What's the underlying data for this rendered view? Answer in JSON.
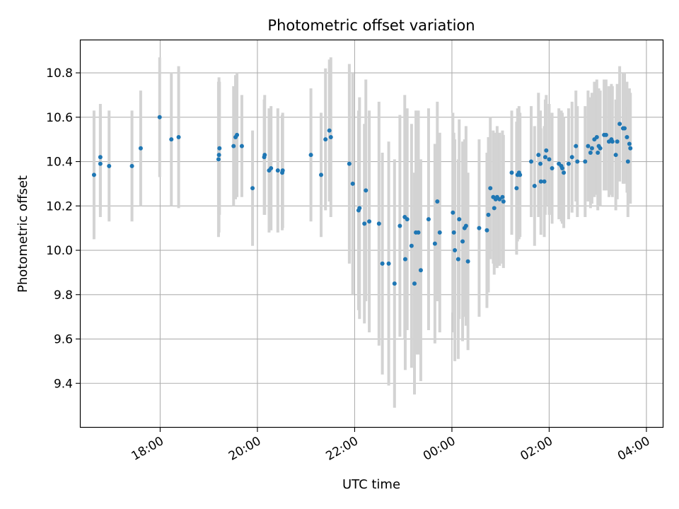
{
  "chart_data": {
    "type": "scatter",
    "title": "Photometric offset variation",
    "xlabel": "UTC time",
    "ylabel": "Photometric offset",
    "x_axis_kind": "time",
    "x_start_label": "16:40",
    "xlim_hours": [
      16.35,
      28.35
    ],
    "x_ticks": [
      {
        "hour": 18,
        "label": "18:00"
      },
      {
        "hour": 20,
        "label": "20:00"
      },
      {
        "hour": 22,
        "label": "22:00"
      },
      {
        "hour": 24,
        "label": "00:00"
      },
      {
        "hour": 26,
        "label": "02:00"
      },
      {
        "hour": 28,
        "label": "04:00"
      }
    ],
    "ylim": [
      9.2,
      10.95
    ],
    "y_ticks": [
      {
        "value": 9.4,
        "label": "9.4"
      },
      {
        "value": 9.6,
        "label": "9.6"
      },
      {
        "value": 9.8,
        "label": "9.8"
      },
      {
        "value": 10.0,
        "label": "10.0"
      },
      {
        "value": 10.2,
        "label": "10.2"
      },
      {
        "value": 10.4,
        "label": "10.4"
      },
      {
        "value": 10.6,
        "label": "10.6"
      },
      {
        "value": 10.8,
        "label": "10.8"
      }
    ],
    "grid": true,
    "marker_color": "#1f77b4",
    "errorbar_color": "#d3d3d3",
    "series": [
      {
        "x_hours": [
          16.64,
          16.77,
          16.77,
          16.95,
          17.42,
          17.6,
          17.99,
          18.23,
          18.38,
          19.2,
          19.21,
          19.22,
          19.51,
          19.55,
          19.58,
          19.68,
          19.9,
          20.14,
          20.15,
          20.24,
          20.28,
          20.42,
          20.51,
          20.52,
          21.1,
          21.31,
          21.4,
          21.48,
          21.51,
          21.89,
          21.96,
          22.08,
          22.1,
          22.2,
          22.23,
          22.3,
          22.5,
          22.57,
          22.7,
          22.82,
          22.93,
          23.03,
          23.04,
          23.08,
          23.17,
          23.23,
          23.26,
          23.31,
          23.36,
          23.52,
          23.65,
          23.7,
          23.75,
          24.02,
          24.04,
          24.06,
          24.13,
          24.15,
          24.22,
          24.26,
          24.29,
          24.33,
          24.56,
          24.72,
          24.75,
          24.79,
          24.85,
          24.87,
          24.9,
          24.93,
          24.98,
          25.04,
          25.06,
          25.23,
          25.33,
          25.35,
          25.38,
          25.4,
          25.63,
          25.7,
          25.78,
          25.82,
          25.83,
          25.9,
          25.92,
          25.94,
          26.0,
          26.06,
          26.2,
          26.25,
          26.27,
          26.3,
          26.4,
          26.47,
          26.55,
          26.58,
          26.74,
          26.8,
          26.85,
          26.88,
          26.93,
          26.98,
          27.0,
          27.02,
          27.05,
          27.13,
          27.17,
          27.23,
          27.28,
          27.3,
          27.37,
          27.4,
          27.45,
          27.52,
          27.55,
          27.6,
          27.62,
          27.65,
          27.67
        ],
        "y": [
          10.34,
          10.39,
          10.42,
          10.38,
          10.38,
          10.46,
          10.6,
          10.5,
          10.51,
          10.41,
          10.43,
          10.46,
          10.47,
          10.51,
          10.52,
          10.47,
          10.28,
          10.42,
          10.43,
          10.36,
          10.37,
          10.36,
          10.35,
          10.36,
          10.43,
          10.34,
          10.5,
          10.54,
          10.51,
          10.39,
          10.3,
          10.18,
          10.19,
          10.12,
          10.27,
          10.13,
          10.12,
          9.94,
          9.94,
          9.85,
          10.11,
          10.15,
          9.96,
          10.14,
          10.02,
          9.85,
          10.08,
          10.08,
          9.91,
          10.14,
          10.03,
          10.22,
          10.08,
          10.17,
          10.08,
          10.0,
          9.96,
          10.14,
          10.04,
          10.1,
          10.11,
          9.95,
          10.1,
          10.09,
          10.16,
          10.28,
          10.24,
          10.19,
          10.23,
          10.24,
          10.23,
          10.24,
          10.22,
          10.35,
          10.28,
          10.34,
          10.35,
          10.34,
          10.4,
          10.29,
          10.43,
          10.39,
          10.31,
          10.31,
          10.42,
          10.45,
          10.41,
          10.37,
          10.39,
          10.38,
          10.37,
          10.35,
          10.39,
          10.42,
          10.47,
          10.4,
          10.4,
          10.47,
          10.44,
          10.46,
          10.5,
          10.51,
          10.44,
          10.47,
          10.46,
          10.52,
          10.52,
          10.49,
          10.5,
          10.49,
          10.43,
          10.49,
          10.57,
          10.55,
          10.55,
          10.51,
          10.4,
          10.48,
          10.46
        ],
        "yerr": [
          0.29,
          0.24,
          0.24,
          0.25,
          0.25,
          0.26,
          0.27,
          0.3,
          0.32,
          0.35,
          0.35,
          0.3,
          0.27,
          0.28,
          0.28,
          0.23,
          0.26,
          0.26,
          0.27,
          0.28,
          0.28,
          0.28,
          0.26,
          0.26,
          0.3,
          0.28,
          0.32,
          0.32,
          0.36,
          0.45,
          0.5,
          0.45,
          0.5,
          0.45,
          0.5,
          0.5,
          0.55,
          0.5,
          0.55,
          0.56,
          0.5,
          0.55,
          0.5,
          0.5,
          0.55,
          0.5,
          0.55,
          0.55,
          0.5,
          0.5,
          0.45,
          0.45,
          0.45,
          0.45,
          0.45,
          0.5,
          0.45,
          0.45,
          0.45,
          0.4,
          0.45,
          0.4,
          0.4,
          0.35,
          0.35,
          0.32,
          0.3,
          0.3,
          0.3,
          0.32,
          0.3,
          0.3,
          0.3,
          0.28,
          0.3,
          0.3,
          0.3,
          0.28,
          0.25,
          0.27,
          0.28,
          0.24,
          0.24,
          0.25,
          0.26,
          0.25,
          0.25,
          0.25,
          0.25,
          0.25,
          0.25,
          0.25,
          0.25,
          0.25,
          0.25,
          0.25,
          0.25,
          0.25,
          0.25,
          0.25,
          0.26,
          0.26,
          0.26,
          0.26,
          0.26,
          0.25,
          0.25,
          0.25,
          0.25,
          0.25,
          0.25,
          0.26,
          0.26,
          0.25,
          0.25,
          0.25,
          0.25,
          0.25,
          0.25
        ]
      }
    ]
  }
}
